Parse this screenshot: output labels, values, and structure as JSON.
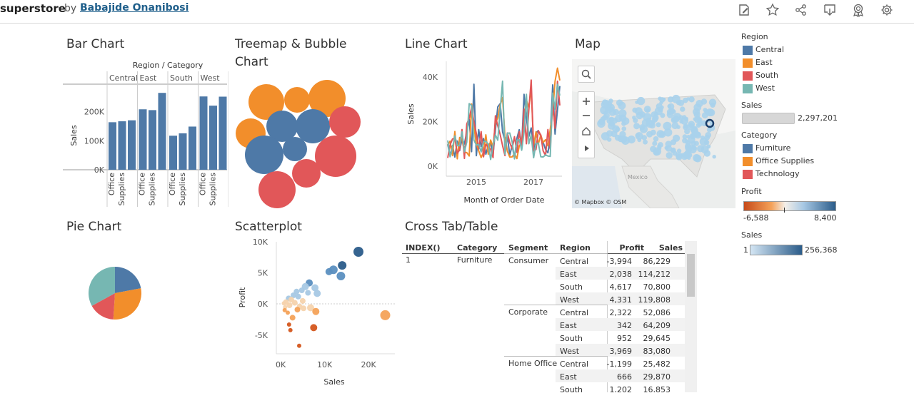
{
  "header": {
    "app_title": "superstore",
    "by": "by",
    "author": "Babajide Onanibosi",
    "icons": [
      "edit-icon",
      "star-icon",
      "share-icon",
      "download-icon",
      "badge-icon",
      "gear-icon"
    ]
  },
  "titles": {
    "bar": "Bar Chart",
    "treemap_line1": "Treemap & Bubble",
    "treemap_line2": "Chart",
    "line": "Line Chart",
    "map": "Map",
    "pie": "Pie Chart",
    "scatter": "Scatterplot",
    "crosstab": "Cross Tab/Table"
  },
  "colors": {
    "central": "#4e79a7",
    "east": "#f28e2b",
    "south": "#e15759",
    "west": "#76b7b2",
    "bar": "#4e79a7",
    "link": "#1f5f8b"
  },
  "chart_data": [
    {
      "type": "bar",
      "header_label": "Region / Category",
      "regions": [
        "Central",
        "East",
        "South",
        "West"
      ],
      "categories": [
        "Furniture",
        "Office Supplies",
        "Technology"
      ],
      "visible_category_labels": [
        "Office",
        "Supplies"
      ],
      "ylabel": "Sales",
      "yticks": [
        "0K",
        "100K",
        "200K"
      ],
      "ylim": [
        0,
        290000
      ],
      "values": [
        [
          163800,
          167000,
          170400
        ],
        [
          208300,
          205500,
          264900
        ],
        [
          117300,
          125600,
          148800
        ],
        [
          252600,
          220900,
          251900
        ]
      ]
    },
    {
      "type": "line",
      "ylabel": "Sales",
      "xlabel": "Month of Order Date",
      "yticks": [
        "0K",
        "20K",
        "40K"
      ],
      "xticks": [
        "2015",
        "2017"
      ]
    },
    {
      "type": "scatter",
      "xlabel": "Sales",
      "ylabel": "Profit",
      "xticks": [
        "0K",
        "10K",
        "20K"
      ],
      "yticks": [
        "10K",
        "5K",
        "0K",
        "-5K"
      ],
      "xlim": [
        -1000,
        26000
      ],
      "ylim": [
        -8000,
        10000
      ]
    },
    {
      "type": "pie",
      "series": [
        {
          "name": "Central",
          "value": 0.22
        },
        {
          "name": "East",
          "value": 0.29
        },
        {
          "name": "South",
          "value": 0.16
        },
        {
          "name": "West",
          "value": 0.33
        }
      ]
    }
  ],
  "map": {
    "attribution": "© Mapbox © OSM",
    "place_label": "Mexico",
    "controls": [
      "search-icon",
      "zoom-in-icon",
      "zoom-out-icon",
      "home-icon",
      "play-icon"
    ]
  },
  "legend": {
    "region_title": "Region",
    "regions": [
      "Central",
      "East",
      "South",
      "West"
    ],
    "sales_title": "Sales",
    "sales_value": "2,297,201",
    "category_title": "Category",
    "categories": [
      "Furniture",
      "Office Supplies",
      "Technology"
    ],
    "profit_title": "Profit",
    "profit_min": "-6,588",
    "profit_max": "8,400",
    "sales2_title": "Sales",
    "sales2_min": "1",
    "sales2_max": "256,368"
  },
  "crosstab": {
    "headers": [
      "INDEX()",
      "Category",
      "Segment",
      "Region",
      "Profit",
      "Sales"
    ],
    "index": "1",
    "category": "Furniture",
    "rows": [
      {
        "segment": "Consumer",
        "region": "Central",
        "profit": "-3,994",
        "sales": "86,229"
      },
      {
        "segment": "",
        "region": "East",
        "profit": "2,038",
        "sales": "114,212"
      },
      {
        "segment": "",
        "region": "South",
        "profit": "4,617",
        "sales": "70,800"
      },
      {
        "segment": "",
        "region": "West",
        "profit": "4,331",
        "sales": "119,808"
      },
      {
        "segment": "Corporate",
        "region": "Central",
        "profit": "2,322",
        "sales": "52,086"
      },
      {
        "segment": "",
        "region": "East",
        "profit": "342",
        "sales": "64,209"
      },
      {
        "segment": "",
        "region": "South",
        "profit": "952",
        "sales": "29,645"
      },
      {
        "segment": "",
        "region": "West",
        "profit": "3,969",
        "sales": "83,080"
      },
      {
        "segment": "Home Office",
        "region": "Central",
        "profit": "-1,199",
        "sales": "25,482"
      },
      {
        "segment": "",
        "region": "East",
        "profit": "666",
        "sales": "29,870"
      },
      {
        "segment": "",
        "region": "South",
        "profit": "1,202",
        "sales": "16,853"
      }
    ]
  }
}
